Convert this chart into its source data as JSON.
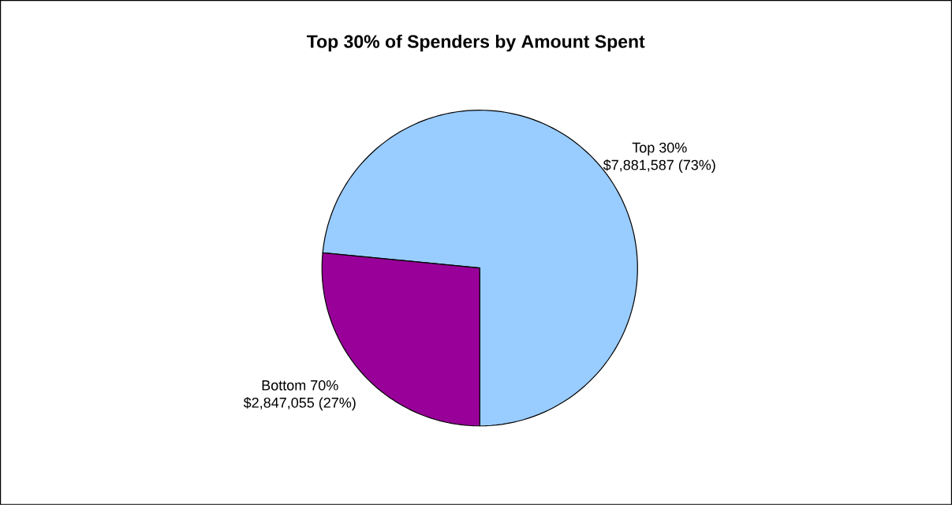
{
  "chart_data": {
    "type": "pie",
    "title": "Top 30% of Spenders by Amount Spent",
    "categories": [
      "Top 30%",
      "Bottom 70%"
    ],
    "values": [
      7881587,
      2847055
    ],
    "colors": [
      "#99ccff",
      "#990099"
    ],
    "value_labels": [
      "$7,881,587 (73%)",
      "$2,847,055 (27%)"
    ]
  }
}
